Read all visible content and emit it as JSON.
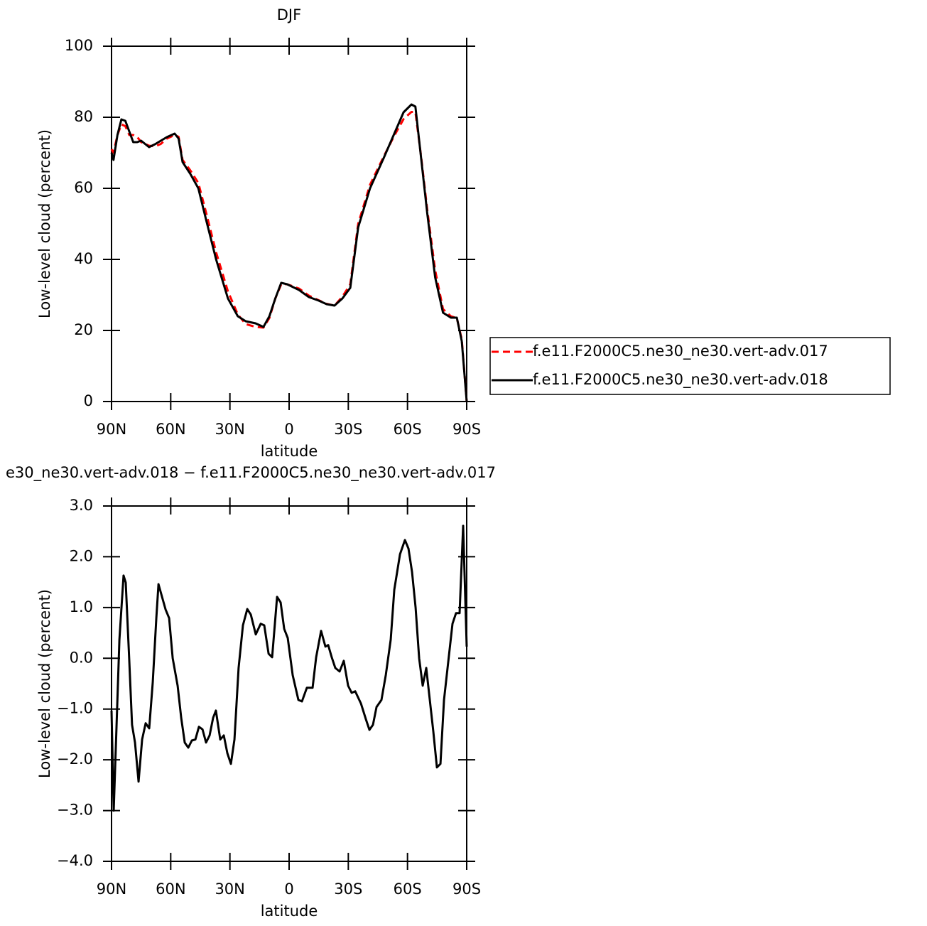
{
  "chart_data": [
    {
      "type": "line",
      "title": "DJF",
      "x_label": "latitude",
      "y_label": "Low-level cloud (percent)",
      "x": [
        90,
        89,
        87,
        85,
        83,
        81,
        79,
        77,
        75,
        71,
        68,
        65,
        62,
        58,
        56,
        54,
        50,
        46,
        42,
        37,
        31,
        26,
        22,
        17,
        13,
        10,
        7,
        4,
        1,
        -5,
        -10,
        -15,
        -19,
        -23,
        -27,
        -31,
        -35,
        -41,
        -48,
        -53,
        -58,
        -62,
        -64,
        -67,
        -70,
        -74,
        -78,
        -82,
        -85,
        -87.5,
        -90
      ],
      "series": [
        {
          "name": "f.e11.F2000C5.ne30_ne30.vert-adv.017",
          "color": "#ff0000",
          "line_style": "dashed",
          "values": [
            71,
            70,
            75,
            78,
            77.5,
            75,
            75,
            74.5,
            73,
            72,
            71.8,
            72.5,
            74,
            75,
            74.5,
            68,
            65,
            61.5,
            53,
            42,
            31,
            24.5,
            21.8,
            21,
            20.8,
            23.5,
            29,
            33,
            33,
            31.8,
            29.8,
            28.5,
            27.5,
            27,
            29.5,
            33,
            50,
            61,
            69,
            74.5,
            79.5,
            81.5,
            81.5,
            68.5,
            54,
            37,
            26,
            24,
            23.5,
            17.5,
            0
          ]
        },
        {
          "name": "f.e11.F2000C5.ne30_ne30.vert-adv.018",
          "color": "#000000",
          "line_style": "solid",
          "values": [
            70,
            68,
            75,
            79.4,
            79,
            76,
            73,
            73,
            73.4,
            71.6,
            72.4,
            73.4,
            74.4,
            75.4,
            74,
            67.4,
            64,
            60,
            51,
            40,
            29,
            24,
            22.6,
            22,
            21,
            24,
            29,
            33.4,
            33,
            31.4,
            29.4,
            28.4,
            27.4,
            27,
            29,
            32,
            49,
            60,
            68.6,
            75,
            81.4,
            83.6,
            83,
            68,
            53,
            35,
            25,
            23.6,
            23.6,
            17,
            0
          ]
        }
      ],
      "xlim": [
        90,
        -90
      ],
      "xticks": [
        {
          "value": 90,
          "label": "90N"
        },
        {
          "value": 60,
          "label": "60N"
        },
        {
          "value": 30,
          "label": "30N"
        },
        0,
        {
          "value": -30,
          "label": "30S"
        },
        {
          "value": -60,
          "label": "60S"
        },
        {
          "value": -90,
          "label": "90S"
        }
      ],
      "ylim": [
        0,
        100
      ],
      "yticks": [
        0,
        20,
        40,
        60,
        80,
        100
      ],
      "legend": "right"
    },
    {
      "type": "line",
      "title": "e30_ne30.vert-adv.018 − f.e11.F2000C5.ne30_ne30.vert-adv.017",
      "x_label": "latitude",
      "y_label": "Low-level cloud (percent)",
      "x": [
        90,
        88.9,
        87.8,
        86.0,
        83.9,
        82.8,
        81.0,
        79.6,
        78.1,
        76.3,
        74.5,
        72.7,
        70.9,
        69.1,
        67.3,
        66.2,
        64.4,
        62.6,
        60.8,
        59.0,
        56.5,
        54.7,
        52.9,
        51.1,
        49.3,
        47.5,
        45.7,
        43.9,
        42.1,
        40.3,
        38.5,
        37.1,
        34.9,
        33.1,
        31.3,
        29.5,
        27.7,
        25.6,
        23.4,
        21.2,
        19.4,
        16.9,
        14.4,
        12.6,
        10.4,
        8.6,
        6.1,
        4.3,
        2.5,
        0.7,
        -1.8,
        -4.7,
        -6.5,
        -9.0,
        -11.9,
        -13.7,
        -16.2,
        -18.4,
        -19.8,
        -21.6,
        -23.4,
        -25.6,
        -27.7,
        -29.9,
        -31.7,
        -33.5,
        -36.4,
        -38.9,
        -40.7,
        -42.5,
        -44.3,
        -46.8,
        -49.0,
        -51.5,
        -53.3,
        -56.2,
        -58.7,
        -60.5,
        -62.3,
        -64.1,
        -65.9,
        -67.7,
        -69.5,
        -71.3,
        -73.1,
        -74.9,
        -76.7,
        -78.5,
        -80.3,
        -82.8,
        -84.6,
        -86.4,
        -88.2,
        -90
      ],
      "series": [
        {
          "color": "#000000",
          "line_style": "solid",
          "values": [
            -1.03,
            -3.0,
            -1.73,
            0.37,
            1.63,
            1.49,
            -0.05,
            -1.31,
            -1.66,
            -2.43,
            -1.6,
            -1.28,
            -1.38,
            -0.47,
            0.79,
            1.46,
            1.21,
            0.96,
            0.79,
            0.0,
            -0.54,
            -1.17,
            -1.66,
            -1.76,
            -1.62,
            -1.6,
            -1.35,
            -1.4,
            -1.66,
            -1.52,
            -1.17,
            -1.03,
            -1.6,
            -1.52,
            -1.87,
            -2.08,
            -1.6,
            -0.19,
            0.65,
            0.97,
            0.86,
            0.47,
            0.68,
            0.65,
            0.09,
            0.02,
            1.21,
            1.1,
            0.58,
            0.4,
            -0.33,
            -0.82,
            -0.85,
            -0.58,
            -0.58,
            0.02,
            0.54,
            0.23,
            0.26,
            0.02,
            -0.19,
            -0.26,
            -0.05,
            -0.54,
            -0.68,
            -0.65,
            -0.89,
            -1.2,
            -1.41,
            -1.31,
            -0.96,
            -0.82,
            -0.33,
            0.37,
            1.35,
            2.05,
            2.33,
            2.16,
            1.7,
            1.0,
            0.0,
            -0.54,
            -0.19,
            -0.82,
            -1.45,
            -2.15,
            -2.08,
            -0.82,
            -0.19,
            0.68,
            0.89,
            0.89,
            2.61,
            0.23
          ]
        }
      ],
      "xlim": [
        90,
        -90
      ],
      "xticks": [
        {
          "value": 90,
          "label": "90N"
        },
        {
          "value": 60,
          "label": "60N"
        },
        {
          "value": 30,
          "label": "30N"
        },
        0,
        {
          "value": -30,
          "label": "30S"
        },
        {
          "value": -60,
          "label": "60S"
        },
        {
          "value": -90,
          "label": "90S"
        }
      ],
      "ylim": [
        -4,
        3
      ],
      "yticks": [
        {
          "value": -4,
          "label": "−4.0"
        },
        {
          "value": -3,
          "label": "−3.0"
        },
        {
          "value": -2,
          "label": "−2.0"
        },
        {
          "value": -1,
          "label": "−1.0"
        },
        {
          "value": 0,
          "label": "0.0"
        },
        {
          "value": 1,
          "label": "1.0"
        },
        {
          "value": 2,
          "label": "2.0"
        },
        {
          "value": 3,
          "label": "3.0"
        }
      ]
    }
  ]
}
